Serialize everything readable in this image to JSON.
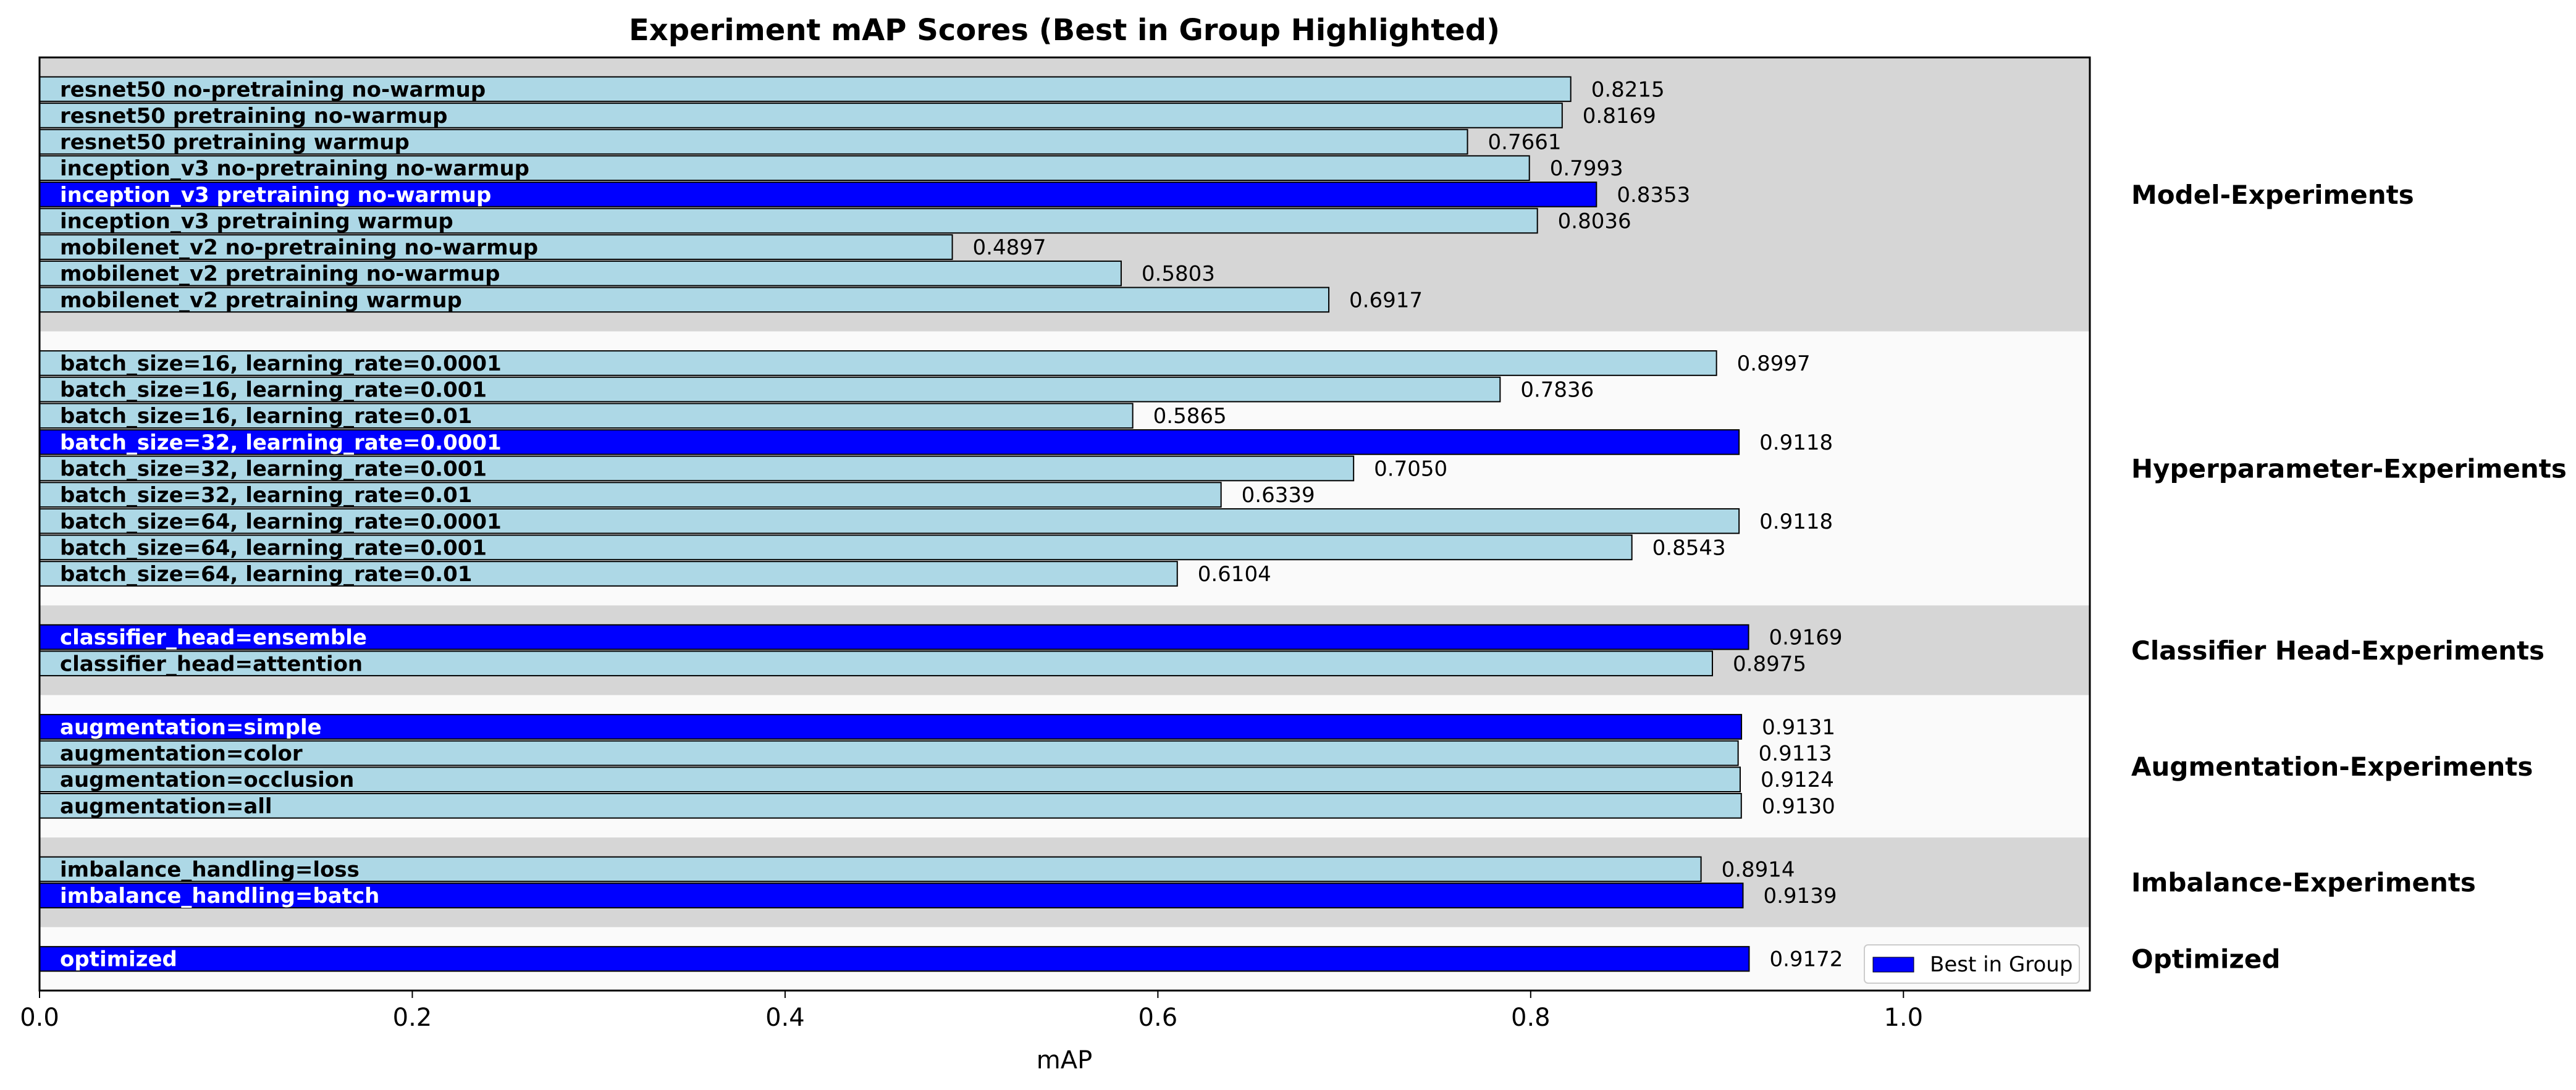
{
  "chart_data": {
    "type": "bar",
    "orientation": "horizontal",
    "title": "Experiment mAP Scores (Best in Group Highlighted)",
    "xlabel": "mAP",
    "ylabel": "",
    "xlim": [
      0.0,
      1.1
    ],
    "x_ticks": [
      "0.0",
      "0.2",
      "0.4",
      "0.6",
      "0.8",
      "1.0"
    ],
    "grid": false,
    "legend": {
      "placement": "lower-right",
      "entries": [
        {
          "label": "Best in Group",
          "color": "#0000ff"
        }
      ]
    },
    "colors": {
      "best": "#0000ff",
      "other": "#add8e6",
      "band_shaded": "#d6d6d6",
      "band_light": "#fafafa"
    },
    "groups": [
      {
        "name": "Model-Experiments",
        "bars": [
          {
            "label": "resnet50 no-pretraining no-warmup",
            "value": 0.8215,
            "value_label": "0.8215",
            "best": false
          },
          {
            "label": "resnet50 pretraining no-warmup",
            "value": 0.8169,
            "value_label": "0.8169",
            "best": false
          },
          {
            "label": "resnet50 pretraining warmup",
            "value": 0.7661,
            "value_label": "0.7661",
            "best": false
          },
          {
            "label": "inception_v3 no-pretraining no-warmup",
            "value": 0.7993,
            "value_label": "0.7993",
            "best": false
          },
          {
            "label": "inception_v3 pretraining no-warmup",
            "value": 0.8353,
            "value_label": "0.8353",
            "best": true
          },
          {
            "label": "inception_v3 pretraining warmup",
            "value": 0.8036,
            "value_label": "0.8036",
            "best": false
          },
          {
            "label": "mobilenet_v2 no-pretraining no-warmup",
            "value": 0.4897,
            "value_label": "0.4897",
            "best": false
          },
          {
            "label": "mobilenet_v2 pretraining no-warmup",
            "value": 0.5803,
            "value_label": "0.5803",
            "best": false
          },
          {
            "label": "mobilenet_v2 pretraining warmup",
            "value": 0.6917,
            "value_label": "0.6917",
            "best": false
          }
        ]
      },
      {
        "name": "Hyperparameter-Experiments",
        "bars": [
          {
            "label": "batch_size=16, learning_rate=0.0001",
            "value": 0.8997,
            "value_label": "0.8997",
            "best": false
          },
          {
            "label": "batch_size=16, learning_rate=0.001",
            "value": 0.7836,
            "value_label": "0.7836",
            "best": false
          },
          {
            "label": "batch_size=16, learning_rate=0.01",
            "value": 0.5865,
            "value_label": "0.5865",
            "best": false
          },
          {
            "label": "batch_size=32, learning_rate=0.0001",
            "value": 0.9118,
            "value_label": "0.9118",
            "best": true
          },
          {
            "label": "batch_size=32, learning_rate=0.001",
            "value": 0.705,
            "value_label": "0.7050",
            "best": false
          },
          {
            "label": "batch_size=32, learning_rate=0.01",
            "value": 0.6339,
            "value_label": "0.6339",
            "best": false
          },
          {
            "label": "batch_size=64, learning_rate=0.0001",
            "value": 0.9118,
            "value_label": "0.9118",
            "best": false
          },
          {
            "label": "batch_size=64, learning_rate=0.001",
            "value": 0.8543,
            "value_label": "0.8543",
            "best": false
          },
          {
            "label": "batch_size=64, learning_rate=0.01",
            "value": 0.6104,
            "value_label": "0.6104",
            "best": false
          }
        ]
      },
      {
        "name": "Classifier Head-Experiments",
        "bars": [
          {
            "label": "classifier_head=ensemble",
            "value": 0.9169,
            "value_label": "0.9169",
            "best": true
          },
          {
            "label": "classifier_head=attention",
            "value": 0.8975,
            "value_label": "0.8975",
            "best": false
          }
        ]
      },
      {
        "name": "Augmentation-Experiments",
        "bars": [
          {
            "label": "augmentation=simple",
            "value": 0.9131,
            "value_label": "0.9131",
            "best": true
          },
          {
            "label": "augmentation=color",
            "value": 0.9113,
            "value_label": "0.9113",
            "best": false
          },
          {
            "label": "augmentation=occlusion",
            "value": 0.9124,
            "value_label": "0.9124",
            "best": false
          },
          {
            "label": "augmentation=all",
            "value": 0.913,
            "value_label": "0.9130",
            "best": false
          }
        ]
      },
      {
        "name": "Imbalance-Experiments",
        "bars": [
          {
            "label": "imbalance_handling=loss",
            "value": 0.8914,
            "value_label": "0.8914",
            "best": false
          },
          {
            "label": "imbalance_handling=batch",
            "value": 0.9139,
            "value_label": "0.9139",
            "best": true
          }
        ]
      },
      {
        "name": "Optimized",
        "bars": [
          {
            "label": "optimized",
            "value": 0.9172,
            "value_label": "0.9172",
            "best": true
          }
        ]
      }
    ]
  }
}
